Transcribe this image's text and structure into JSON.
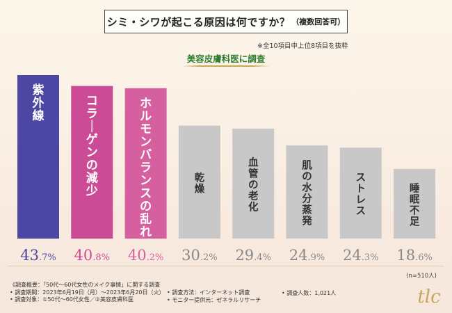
{
  "header": {
    "title": "シミ・シワが起こる原因は何ですか？",
    "title_note": "（複数回答可）",
    "footnote": "※全10項目中上位8項目を抜粋",
    "group_label": "美容皮膚科医に調査"
  },
  "chart_data": {
    "type": "bar",
    "title": "シミ・シワが起こる原因は何ですか？（複数回答可）",
    "categories": [
      "紫外線",
      "コラーゲンの減少",
      "ホルモンバランスの乱れ",
      "乾燥",
      "血管の老化",
      "肌の水分蒸発",
      "ストレス",
      "睡眠不足"
    ],
    "values": [
      43.7,
      40.8,
      40.2,
      30.2,
      29.4,
      24.9,
      24.3,
      18.6
    ],
    "value_labels": [
      "43.7%",
      "40.8%",
      "40.2%",
      "30.2%",
      "29.4%",
      "24.9%",
      "24.3%",
      "18.6%"
    ],
    "colors": [
      "#4d47a4",
      "#cc4b97",
      "#d6609f",
      "#c8c8c8",
      "#c8c8c8",
      "#c8c8c8",
      "#c8c8c8",
      "#c8c8c8"
    ],
    "label_colors": [
      "#4d47a4",
      "#cc4b97",
      "#d6609f",
      "#888888",
      "#888888",
      "#888888",
      "#888888",
      "#888888"
    ],
    "ylim": [
      0,
      45
    ],
    "sample_size": "(n=510人)"
  },
  "survey": {
    "overview": "《調査概要：「50代〜60代女性のメイク事情」に関する調査",
    "period": "• 調査期間：2023年6月19日（月）〜2023年6月20日（火）",
    "target": "• 調査対象：①50代〜60代女性／②美容皮膚科医",
    "method": "• 調査方法：インターネット調査",
    "provider": "• モニター提供元：ゼネラルリサーチ",
    "count": "• 調査人数：1,021人"
  },
  "logo_text": "tlc"
}
